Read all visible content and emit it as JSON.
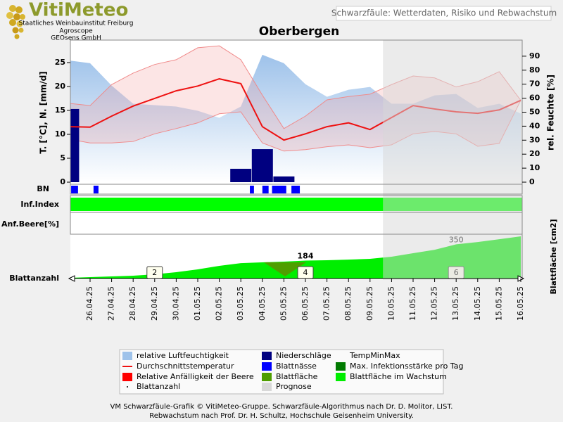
{
  "header": {
    "logo": "VitiMeteo",
    "logo_lines": [
      "Staatliches Weinbauinstitut Freiburg",
      "Agroscope",
      "GEOsens GmbH"
    ],
    "caption": "Schwarzfäule: Wetterdaten, Risiko und Rebwachstum"
  },
  "chart_data": {
    "type": "combo",
    "title": "Oberbergen",
    "y_label": "T. [°C], N. [mm/d]",
    "y2_label": "rel. Feuchte [%]",
    "y3_label": "Blattfläche [cm2]",
    "rows": [
      "BN",
      "Inf.Index",
      "Anf.Beere[%]",
      "Blattanzahl"
    ],
    "categories": [
      null,
      "26.04.25",
      "27.04.25",
      "28.04.25",
      "29.04.25",
      "30.04.25",
      "01.05.25",
      "02.05.25",
      "03.05.25",
      "04.05.25",
      "05.05.25",
      "06.05.25",
      "07.05.25",
      "08.05.25",
      "09.05.25",
      "10.05.25",
      "11.05.25",
      "12.05.25",
      "13.05.25",
      "14.05.25",
      "15.05.25",
      "16.05.25"
    ],
    "ylim": [
      0,
      29.7
    ],
    "yticks": [
      0,
      5,
      10,
      15,
      20,
      25
    ],
    "y2lim": [
      0,
      101.5
    ],
    "y2ticks": [
      0,
      10,
      20,
      30,
      40,
      50,
      60,
      70,
      80,
      90
    ],
    "y3lim": [
      0,
      454
    ],
    "series": [
      {
        "name": "relative Luftfeuchtigkeit",
        "color": "#9ec2ea",
        "marker": "box",
        "axis": "y2",
        "values": [
          87,
          85,
          69,
          56,
          55,
          54,
          51,
          46,
          54,
          91,
          85,
          70,
          61,
          66,
          68,
          56,
          56,
          62,
          63,
          53,
          56,
          49
        ]
      },
      {
        "name": "Niederschläge",
        "color": "#000080",
        "marker": "box",
        "values": [
          15.3,
          0,
          0,
          0,
          0,
          0,
          0,
          0,
          2.8,
          6.9,
          1.2,
          0,
          0,
          0,
          0,
          0,
          0,
          0,
          0,
          0,
          0,
          0
        ]
      },
      {
        "name": "TempMinMax",
        "color": "#f08a8a",
        "marker": "none",
        "max": [
          16.5,
          16.0,
          20.4,
          22.8,
          24.6,
          25.6,
          28.1,
          28.5,
          25.6,
          18.2,
          11.2,
          13.8,
          17.2,
          17.9,
          18.4,
          20.4,
          22.2,
          21.8,
          19.9,
          21.0,
          23.1,
          17.1
        ],
        "min": [
          9.0,
          8.2,
          8.2,
          8.5,
          10.1,
          11.2,
          12.4,
          14.3,
          14.7,
          8.2,
          6.5,
          6.8,
          7.4,
          7.8,
          7.2,
          7.8,
          10.1,
          10.6,
          10.1,
          7.5,
          8.1,
          17.1
        ]
      },
      {
        "name": "Durchschnittstemperatur",
        "color": "#ee1111",
        "marker": "line",
        "values": [
          11.6,
          11.5,
          13.8,
          15.9,
          17.5,
          19.1,
          20.1,
          21.6,
          20.6,
          11.6,
          8.8,
          10.1,
          11.6,
          12.4,
          11.0,
          13.5,
          16.0,
          15.3,
          14.7,
          14.4,
          15.1,
          17.1
        ]
      },
      {
        "name": "Blattnässe",
        "color": "#0000ff",
        "marker": "box",
        "spans": [
          [
            0.12,
            0.44
          ],
          [
            1.16,
            1.39
          ],
          [
            8.42,
            8.61
          ],
          [
            9.0,
            9.29
          ],
          [
            9.45,
            10.11
          ],
          [
            10.35,
            10.74
          ]
        ]
      },
      {
        "name": "Max. Infektionsstärke pro Tag",
        "color": "#007a00",
        "marker": "box"
      },
      {
        "name": "Relative Anfälligkeit der Beere",
        "color": "#ff0000",
        "marker": "box"
      },
      {
        "name": "Blattfläche",
        "color": "#4f9e00",
        "marker": "box"
      },
      {
        "name": "Blattfläche im Wachstum",
        "color": "#00ee00",
        "marker": "box",
        "axis": "y3",
        "values": [
          7,
          14,
          22,
          29,
          43,
          65,
          94,
          130,
          158,
          166,
          173,
          184,
          187,
          194,
          202,
          223,
          259,
          295,
          350,
          374,
          403,
          432
        ]
      },
      {
        "name": "Blattanzahl",
        "color": "#000000",
        "marker": "dot",
        "x": [
          "29.04.25",
          "06.05.25",
          "13.05.25"
        ],
        "values": [
          2,
          4,
          6
        ]
      },
      {
        "name": "Prognose",
        "color": "#d8d8d8",
        "marker": "box",
        "start": 14.6
      }
    ]
  },
  "footer": [
    "VM Schwarzfäule-Grafik © VitiMeteo-Gruppe. Schwarzfäule-Algorithmus nach Dr. D. Molitor, LIST.",
    "Rebwachstum nach Prof. Dr. H. Schultz, Hochschule Geisenheim University."
  ]
}
